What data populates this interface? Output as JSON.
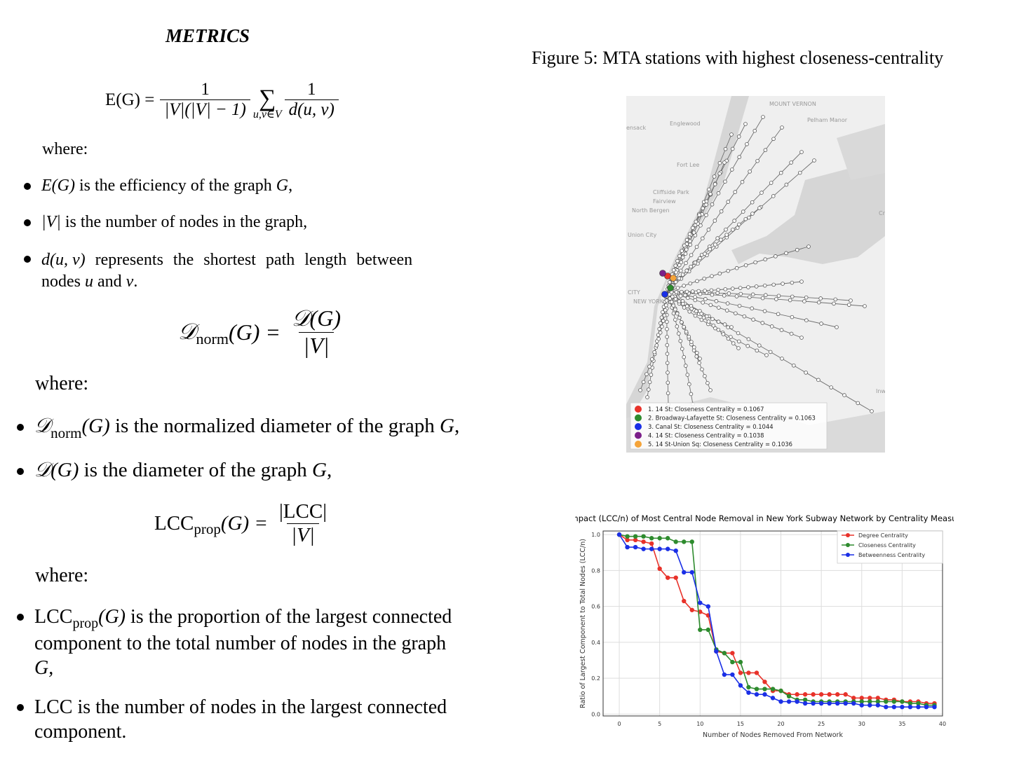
{
  "section_title": "METRICS",
  "efficiency": {
    "lhs": "E(G) =",
    "frac1_num": "1",
    "frac1_den": "|V|(|V| − 1)",
    "sum_symbol": "∑",
    "sum_sub": "u,v∈V",
    "frac2_num": "1",
    "frac2_den": "d(u, v)"
  },
  "where1": "where:",
  "bullets1": [
    {
      "prefix": "E(G)",
      "text": " is the efficiency of the graph ",
      "var": "G",
      "suffix": ","
    },
    {
      "prefix": "|V|",
      "text": " is the number of nodes in the graph,"
    },
    {
      "prefix": "d(u, v)",
      "text_line1": " represents the shortest path length between",
      "text_line2a": "nodes ",
      "u": "u",
      "and": " and ",
      "v": "v",
      "end": "."
    }
  ],
  "diameter": {
    "lhs_main": "𝒟",
    "lhs_sub": "norm",
    "lhs_arg": "(G) =",
    "num": "𝒟(G)",
    "den": "|V|"
  },
  "where2": "where:",
  "bullets2": [
    {
      "prefix_main": "𝒟",
      "prefix_sub": "norm",
      "prefix_arg": "(G)",
      "text": " is the normalized diameter of the graph ",
      "var": "G",
      "suffix": ","
    },
    {
      "prefix": "𝒟(G)",
      "text": " is the diameter of the graph ",
      "var": "G",
      "suffix": ","
    }
  ],
  "lcc": {
    "lhs_main": "LCC",
    "lhs_sub": "prop",
    "lhs_arg": "(G) =",
    "num": "|LCC|",
    "den": "|V|"
  },
  "where3": "where:",
  "bullets3": [
    {
      "prefix_main": "LCC",
      "prefix_sub": "prop",
      "prefix_arg": "(G)",
      "line1": " is the proportion of the largest connected",
      "line2": "component to the total number of nodes in the graph",
      "line3": "G,"
    },
    {
      "line1": "LCC is the number of nodes in the largest connected",
      "line2": "component."
    }
  ],
  "figure5_caption": "Figure 5: MTA stations with highest closeness-centrality",
  "map": {
    "places": [
      "MOUNT VERNON",
      "Pelham Manor",
      "Englewood",
      "Fort Lee",
      "Cliffside Park",
      "Fairview",
      "North Bergen",
      "Union City",
      "CITY",
      "NEW YORK",
      "Inwo",
      "Cr",
      "ensack"
    ],
    "legend": [
      {
        "text": "1. 14 St: Closeness Centrality = 0.1067",
        "color": "#e8322a"
      },
      {
        "text": "2. Broadway-Lafayette St: Closeness Centrality = 0.1063",
        "color": "#2e8b2e"
      },
      {
        "text": "3. Canal St: Closeness Centrality = 0.1044",
        "color": "#1a2fe6"
      },
      {
        "text": "4. 14 St: Closeness Centrality = 0.1038",
        "color": "#7b1f8a"
      },
      {
        "text": "5. 14 St-Union Sq: Closeness Centrality = 0.1036",
        "color": "#f5a43a"
      }
    ]
  },
  "chart_data": {
    "type": "line",
    "title": "Impact (LCC/n) of Most Central Node Removal in New York Subway Network by Centrality Measures",
    "xlabel": "Number of Nodes Removed From Network",
    "ylabel": "Ratio of Largest Component to Total Nodes (LCC/n)",
    "xlim": [
      -2,
      40
    ],
    "ylim": [
      -0.01,
      1.02
    ],
    "x_ticks": [
      0,
      5,
      10,
      15,
      20,
      25,
      30,
      35,
      40
    ],
    "y_ticks": [
      0.0,
      0.2,
      0.4,
      0.6,
      0.8,
      1.0
    ],
    "grid": true,
    "legend_position": "top-right",
    "x": [
      0,
      1,
      2,
      3,
      4,
      5,
      6,
      7,
      8,
      9,
      10,
      11,
      12,
      13,
      14,
      15,
      16,
      17,
      18,
      19,
      20,
      21,
      22,
      23,
      24,
      25,
      26,
      27,
      28,
      29,
      30,
      31,
      32,
      33,
      34,
      35,
      36,
      37,
      38,
      39
    ],
    "series": [
      {
        "name": "Degree Centrality",
        "color": "#e8322a",
        "values": [
          1.0,
          0.97,
          0.97,
          0.96,
          0.95,
          0.81,
          0.76,
          0.76,
          0.63,
          0.58,
          0.57,
          0.55,
          0.35,
          0.34,
          0.34,
          0.23,
          0.23,
          0.23,
          0.18,
          0.13,
          0.13,
          0.11,
          0.11,
          0.11,
          0.11,
          0.11,
          0.11,
          0.11,
          0.11,
          0.09,
          0.09,
          0.09,
          0.09,
          0.08,
          0.08,
          0.07,
          0.07,
          0.07,
          0.06,
          0.06
        ]
      },
      {
        "name": "Closeness Centrality",
        "color": "#2e8b2e",
        "values": [
          1.0,
          0.99,
          0.99,
          0.99,
          0.98,
          0.98,
          0.98,
          0.96,
          0.96,
          0.96,
          0.47,
          0.47,
          0.36,
          0.34,
          0.29,
          0.29,
          0.15,
          0.14,
          0.14,
          0.14,
          0.13,
          0.1,
          0.08,
          0.08,
          0.07,
          0.07,
          0.07,
          0.07,
          0.07,
          0.07,
          0.07,
          0.07,
          0.07,
          0.07,
          0.07,
          0.07,
          0.06,
          0.06,
          0.05,
          0.05
        ]
      },
      {
        "name": "Betweenness Centrality",
        "color": "#1a2fe6",
        "values": [
          1.0,
          0.93,
          0.93,
          0.92,
          0.92,
          0.92,
          0.92,
          0.91,
          0.79,
          0.79,
          0.62,
          0.6,
          0.35,
          0.22,
          0.22,
          0.16,
          0.12,
          0.11,
          0.11,
          0.09,
          0.07,
          0.07,
          0.07,
          0.06,
          0.06,
          0.06,
          0.06,
          0.06,
          0.06,
          0.06,
          0.05,
          0.05,
          0.05,
          0.04,
          0.04,
          0.04,
          0.04,
          0.04,
          0.04,
          0.04
        ]
      }
    ]
  }
}
